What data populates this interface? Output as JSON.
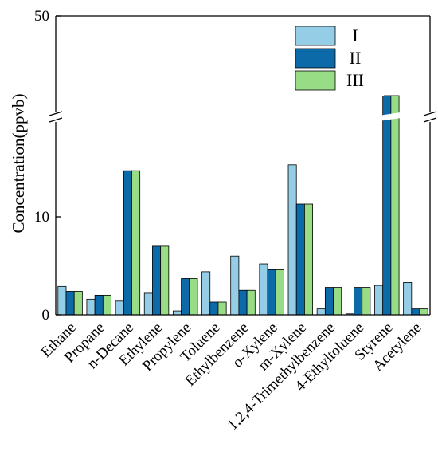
{
  "chart_data": {
    "type": "bar",
    "ylabel": "Concentration(ppvb)",
    "y_axis_break": true,
    "y_ticks": [
      0,
      10,
      50
    ],
    "categories": [
      "Ethane",
      "Propane",
      "n-Decane",
      "Ethylene",
      "Propylene",
      "Toluene",
      "Ethylbenzene",
      "o-Xylene",
      "m-Xylene",
      "1,2,4-Trimethylbenzene",
      "4-Ethyltoluene",
      "Styrene",
      "Acetylene"
    ],
    "series": [
      {
        "name": "I",
        "color": "#94cde5",
        "values": [
          2.9,
          1.6,
          1.4,
          2.2,
          0.4,
          4.4,
          6.0,
          5.2,
          15.3,
          0.6,
          0.1,
          3.0,
          3.3
        ]
      },
      {
        "name": "II",
        "color": "#0d6aa9",
        "values": [
          2.4,
          2.0,
          14.7,
          7.0,
          3.7,
          1.3,
          2.5,
          4.6,
          11.3,
          2.8,
          2.8,
          40.0,
          0.6
        ]
      },
      {
        "name": "III",
        "color": "#98dc85",
        "values": [
          2.4,
          2.0,
          14.7,
          7.0,
          3.7,
          1.3,
          2.5,
          4.6,
          11.3,
          2.8,
          2.8,
          40.0,
          0.6
        ]
      }
    ],
    "legend_position": "top-right",
    "grid": false
  }
}
